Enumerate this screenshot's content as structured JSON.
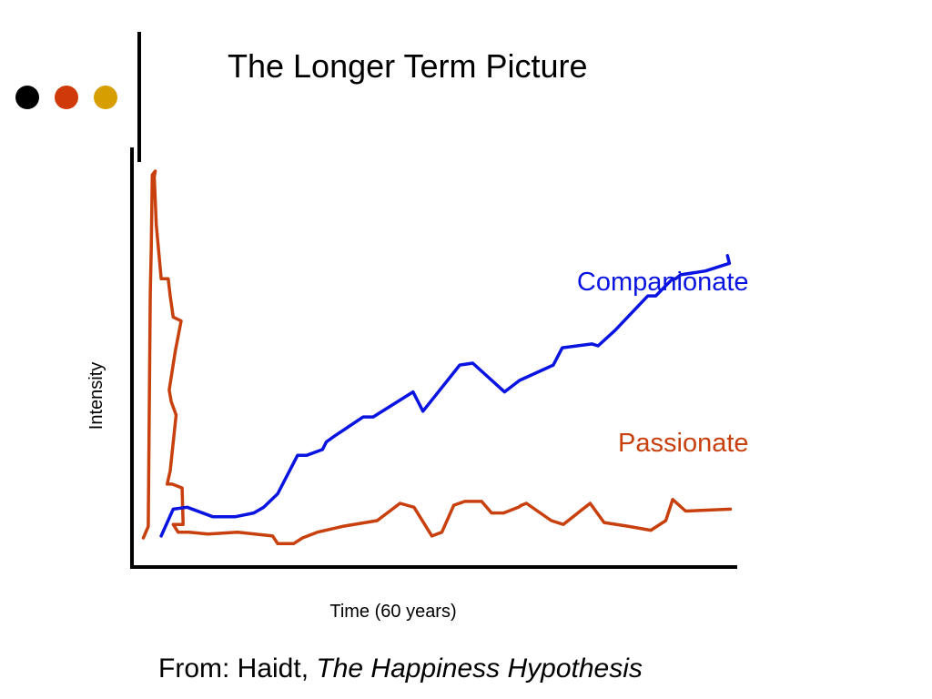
{
  "slide": {
    "title": "The Longer Term Picture",
    "decor_dot_colors": [
      "#000000",
      "#d03a08",
      "#d69e00"
    ]
  },
  "source": {
    "prefix": "From: Haidt, ",
    "book_title": "The Happiness Hypothesis"
  },
  "chart_data": {
    "type": "line",
    "title": "",
    "xlabel": "Time (60 years)",
    "ylabel": "Intensity",
    "xlim": [
      0,
      60
    ],
    "ylim": [
      0,
      10
    ],
    "grid": false,
    "legend": "inline labels at right end of each series",
    "ticks": false,
    "series": [
      {
        "name": "Passionate",
        "color": "#c8400e",
        "label_anchor": [
          59.5,
          2.7
        ],
        "x": [
          0.5,
          1.0,
          1.2,
          1.3,
          1.4,
          1.7,
          1.6,
          1.8,
          2.3,
          3.0,
          3.2,
          3.5,
          4.3,
          3.7,
          3.1,
          3.3,
          3.8,
          3.2,
          2.9,
          3.4,
          4.4,
          4.5,
          3.5,
          4.0,
          4.9,
          5.1,
          7.0,
          10.0,
          13.5,
          14.0,
          14.7,
          15.6,
          16.5,
          18.0,
          20.5,
          24.0,
          26.3,
          27.7,
          29.5,
          30.5,
          31.7,
          32.8,
          34.5,
          35.5,
          36.7,
          38.2,
          38.5,
          39.0,
          41.5,
          42.7,
          45.4,
          46.8,
          49.3,
          51.5,
          53.0,
          53.7,
          55.0,
          59.5
        ],
        "y": [
          0.45,
          0.75,
          6.8,
          8.0,
          9.9,
          10.0,
          9.85,
          8.6,
          7.2,
          7.2,
          6.75,
          6.2,
          6.1,
          5.3,
          4.3,
          4.0,
          3.65,
          2.2,
          1.85,
          1.85,
          1.75,
          0.8,
          0.8,
          0.6,
          0.6,
          0.6,
          0.55,
          0.6,
          0.5,
          0.3,
          0.3,
          0.3,
          0.45,
          0.6,
          0.75,
          0.9,
          1.35,
          1.25,
          0.5,
          0.6,
          1.3,
          1.4,
          1.4,
          1.1,
          1.1,
          1.25,
          1.3,
          1.35,
          0.9,
          0.8,
          1.35,
          0.85,
          0.75,
          0.65,
          0.9,
          1.45,
          1.15,
          1.2
        ]
      },
      {
        "name": "Companionate",
        "color": "#0a14e0",
        "label_anchor": [
          59.5,
          6.9
        ],
        "x": [
          2.3,
          3.5,
          4.9,
          7.5,
          9.7,
          11.6,
          12.6,
          14.0,
          16.0,
          16.3,
          16.9,
          18.5,
          18.9,
          19.7,
          22.6,
          23.6,
          27.6,
          28.6,
          32.3,
          33.6,
          36.8,
          38.3,
          41.7,
          42.6,
          45.6,
          46.2,
          47.9,
          51.2,
          52.0,
          53.7,
          54.0,
          54.5,
          57.0,
          59.4,
          59.3,
          59.2
        ],
        "y": [
          0.5,
          1.2,
          1.25,
          1.0,
          1.0,
          1.1,
          1.25,
          1.6,
          2.6,
          2.6,
          2.6,
          2.75,
          2.95,
          3.1,
          3.6,
          3.6,
          4.25,
          3.75,
          4.95,
          5.0,
          4.25,
          4.55,
          4.95,
          5.4,
          5.5,
          5.45,
          5.85,
          6.75,
          6.75,
          7.2,
          7.2,
          7.3,
          7.4,
          7.6,
          7.7,
          7.8
        ]
      }
    ]
  }
}
